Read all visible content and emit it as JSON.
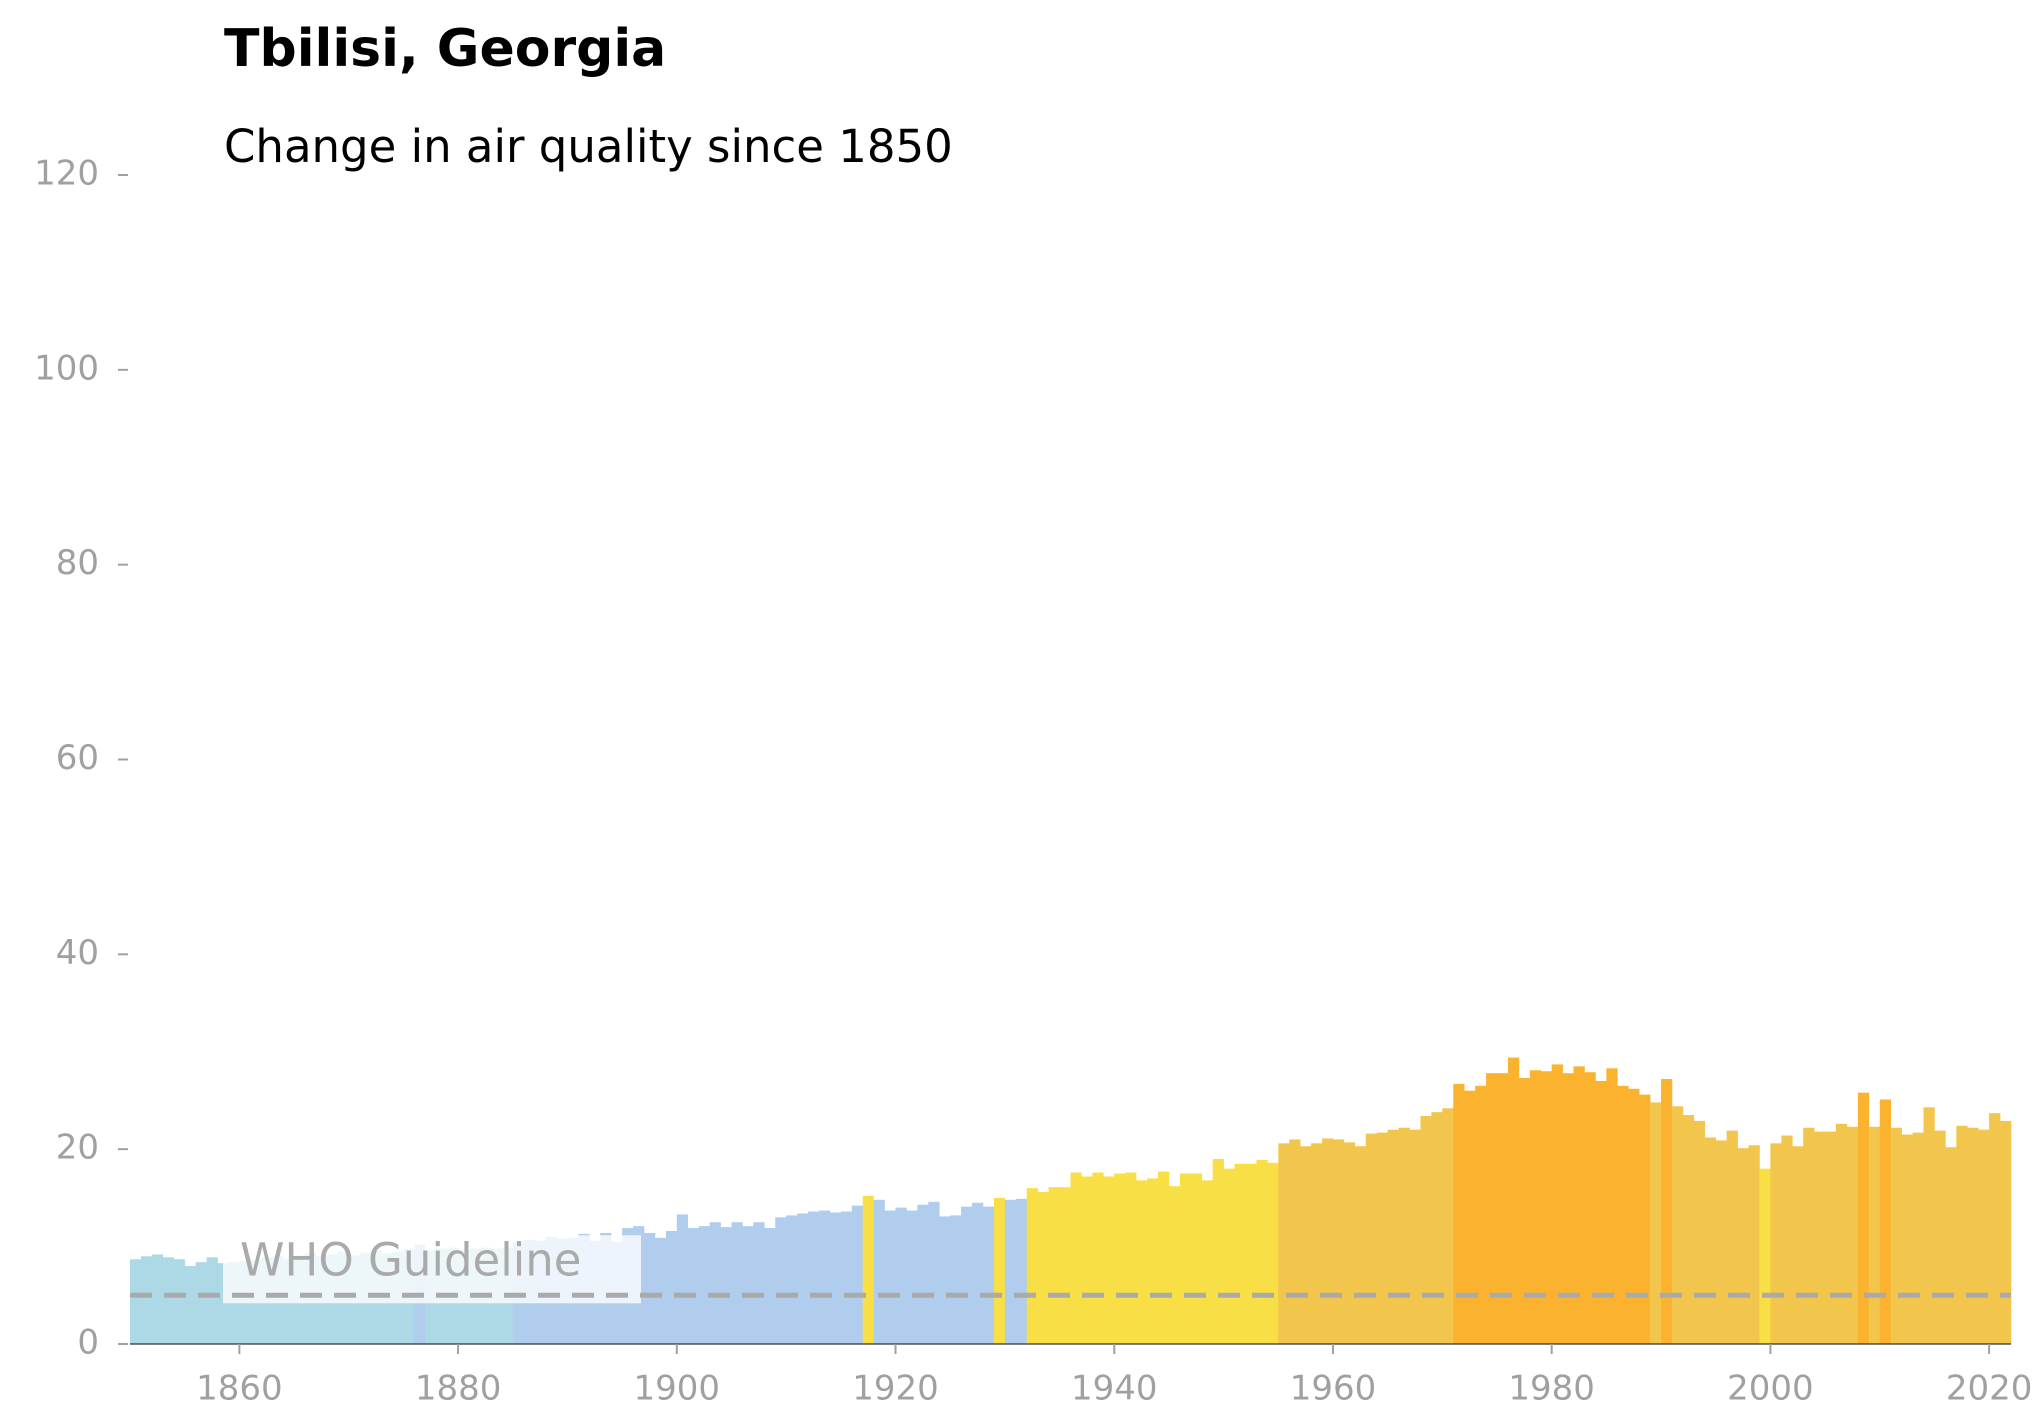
{
  "chart_data": {
    "type": "bar",
    "title": "Tbilisi, Georgia",
    "subtitle": "Change in air quality since 1850",
    "x": [
      1850,
      1851,
      1852,
      1853,
      1854,
      1855,
      1856,
      1857,
      1858,
      1859,
      1860,
      1861,
      1862,
      1863,
      1864,
      1865,
      1866,
      1867,
      1868,
      1869,
      1870,
      1871,
      1872,
      1873,
      1874,
      1875,
      1876,
      1877,
      1878,
      1879,
      1880,
      1881,
      1882,
      1883,
      1884,
      1885,
      1886,
      1887,
      1888,
      1889,
      1890,
      1891,
      1892,
      1893,
      1894,
      1895,
      1896,
      1897,
      1898,
      1899,
      1900,
      1901,
      1902,
      1903,
      1904,
      1905,
      1906,
      1907,
      1908,
      1909,
      1910,
      1911,
      1912,
      1913,
      1914,
      1915,
      1916,
      1917,
      1918,
      1919,
      1920,
      1921,
      1922,
      1923,
      1924,
      1925,
      1926,
      1927,
      1928,
      1929,
      1930,
      1931,
      1932,
      1933,
      1934,
      1935,
      1936,
      1937,
      1938,
      1939,
      1940,
      1941,
      1942,
      1943,
      1944,
      1945,
      1946,
      1947,
      1948,
      1949,
      1950,
      1951,
      1952,
      1953,
      1954,
      1955,
      1956,
      1957,
      1958,
      1959,
      1960,
      1961,
      1962,
      1963,
      1964,
      1965,
      1966,
      1967,
      1968,
      1969,
      1970,
      1971,
      1972,
      1973,
      1974,
      1975,
      1976,
      1977,
      1978,
      1979,
      1980,
      1981,
      1982,
      1983,
      1984,
      1985,
      1986,
      1987,
      1988,
      1989,
      1990,
      1991,
      1992,
      1993,
      1994,
      1995,
      1996,
      1997,
      1998,
      1999,
      2000,
      2001,
      2002,
      2003,
      2004,
      2005,
      2006,
      2007,
      2008,
      2009,
      2010,
      2011,
      2012,
      2013,
      2014,
      2015,
      2016,
      2017,
      2018,
      2019,
      2020,
      2021
    ],
    "values": [
      8.7,
      9.0,
      9.2,
      8.9,
      8.7,
      8.0,
      8.4,
      8.9,
      8.3,
      8.4,
      8.5,
      8.6,
      8.9,
      9.0,
      8.7,
      9.1,
      9.3,
      9.0,
      9.2,
      9.5,
      9.1,
      9.4,
      9.6,
      9.3,
      9.5,
      9.7,
      10.2,
      9.6,
      9.8,
      9.9,
      9.7,
      9.8,
      9.9,
      9.8,
      9.9,
      10.5,
      10.7,
      10.6,
      11.0,
      10.8,
      10.9,
      11.3,
      10.6,
      11.4,
      10.5,
      11.9,
      12.1,
      11.4,
      10.9,
      11.6,
      13.3,
      11.9,
      12.1,
      12.5,
      12.0,
      12.5,
      12.1,
      12.5,
      11.9,
      13.0,
      13.2,
      13.4,
      13.6,
      13.7,
      13.5,
      13.6,
      14.2,
      15.2,
      14.8,
      13.7,
      14.0,
      13.7,
      14.3,
      14.6,
      13.1,
      13.2,
      14.1,
      14.5,
      14.1,
      15.0,
      14.8,
      14.9,
      16.0,
      15.6,
      16.1,
      16.1,
      17.6,
      17.2,
      17.6,
      17.2,
      17.5,
      17.6,
      16.8,
      17.0,
      17.7,
      16.2,
      17.5,
      17.5,
      16.8,
      19.0,
      18.0,
      18.5,
      18.5,
      18.9,
      18.6,
      20.6,
      21.0,
      20.3,
      20.6,
      21.1,
      21.0,
      20.7,
      20.3,
      21.6,
      21.7,
      22.0,
      22.2,
      22.0,
      23.4,
      23.8,
      24.2,
      26.7,
      26.0,
      26.5,
      27.8,
      27.8,
      29.4,
      27.3,
      28.1,
      28.0,
      28.7,
      27.8,
      28.5,
      27.9,
      27.0,
      28.3,
      26.5,
      26.2,
      25.6,
      24.8,
      27.2,
      24.4,
      23.5,
      22.9,
      21.2,
      20.9,
      21.9,
      20.1,
      20.4,
      18.0,
      20.6,
      21.4,
      20.3,
      22.2,
      21.8,
      21.8,
      22.6,
      22.3,
      25.8,
      22.3,
      25.1,
      22.2,
      21.5,
      21.7,
      24.3,
      21.9,
      20.2,
      22.4,
      22.2,
      22.0,
      23.7,
      22.9
    ],
    "colors": [
      "#add8e6",
      "#add8e6",
      "#add8e6",
      "#add8e6",
      "#add8e6",
      "#add8e6",
      "#add8e6",
      "#add8e6",
      "#add8e6",
      "#add8e6",
      "#add8e6",
      "#add8e6",
      "#add8e6",
      "#add8e6",
      "#add8e6",
      "#add8e6",
      "#add8e6",
      "#add8e6",
      "#add8e6",
      "#add8e6",
      "#add8e6",
      "#add8e6",
      "#add8e6",
      "#add8e6",
      "#add8e6",
      "#add8e6",
      "#b0cdee",
      "#add8e6",
      "#add8e6",
      "#add8e6",
      "#add8e6",
      "#add8e6",
      "#add8e6",
      "#add8e6",
      "#add8e6",
      "#b0cdee",
      "#b0cdee",
      "#b0cdee",
      "#b0cdee",
      "#b0cdee",
      "#b0cdee",
      "#b0cdee",
      "#b0cdee",
      "#b0cdee",
      "#b0cdee",
      "#b0cdee",
      "#b0cdee",
      "#b0cdee",
      "#b0cdee",
      "#b0cdee",
      "#b0cdee",
      "#b0cdee",
      "#b0cdee",
      "#b0cdee",
      "#b0cdee",
      "#b0cdee",
      "#b0cdee",
      "#b0cdee",
      "#b0cdee",
      "#b0cdee",
      "#b0cdee",
      "#b0cdee",
      "#b0cdee",
      "#b0cdee",
      "#b0cdee",
      "#b0cdee",
      "#b0cdee",
      "#f8df46",
      "#b0cdee",
      "#b0cdee",
      "#b0cdee",
      "#b0cdee",
      "#b0cdee",
      "#b0cdee",
      "#b0cdee",
      "#b0cdee",
      "#b0cdee",
      "#b0cdee",
      "#b0cdee",
      "#f8df46",
      "#b0cdee",
      "#b0cdee",
      "#f8df46",
      "#f8df46",
      "#f8df46",
      "#f8df46",
      "#f8df46",
      "#f8df46",
      "#f8df46",
      "#f8df46",
      "#f8df46",
      "#f8df46",
      "#f8df46",
      "#f8df46",
      "#f8df46",
      "#f8df46",
      "#f8df46",
      "#f8df46",
      "#f8df46",
      "#f8df46",
      "#f8df46",
      "#f8df46",
      "#f8df46",
      "#f8df46",
      "#f8df46",
      "#f2c64c",
      "#f2c64c",
      "#f2c64c",
      "#f2c64c",
      "#f2c64c",
      "#f2c64c",
      "#f2c64c",
      "#f2c64c",
      "#f2c64c",
      "#f2c64c",
      "#f2c64c",
      "#f2c64c",
      "#f2c64c",
      "#f2c64c",
      "#f2c64c",
      "#f2c64c",
      "#fbb22f",
      "#fbb22f",
      "#fbb22f",
      "#fbb22f",
      "#fbb22f",
      "#fbb22f",
      "#fbb22f",
      "#fbb22f",
      "#fbb22f",
      "#fbb22f",
      "#fbb22f",
      "#fbb22f",
      "#fbb22f",
      "#fbb22f",
      "#fbb22f",
      "#fbb22f",
      "#fbb22f",
      "#fbb22f",
      "#f2c64c",
      "#fbb22f",
      "#f2c64c",
      "#f2c64c",
      "#f2c64c",
      "#f2c64c",
      "#f2c64c",
      "#f2c64c",
      "#f2c64c",
      "#f2c64c",
      "#f8df46",
      "#f2c64c",
      "#f2c64c",
      "#f2c64c",
      "#f2c64c",
      "#f2c64c",
      "#f2c64c",
      "#f2c64c",
      "#f2c64c",
      "#fbb22f",
      "#f2c64c",
      "#fbb22f",
      "#f2c64c",
      "#f2c64c",
      "#f2c64c",
      "#f2c64c",
      "#f2c64c",
      "#f2c64c",
      "#f2c64c",
      "#f2c64c",
      "#f2c64c",
      "#f2c64c",
      "#f2c64c"
    ],
    "xlim": [
      1850,
      2022
    ],
    "xticks": [
      1860,
      1880,
      1900,
      1920,
      1940,
      1960,
      1980,
      2000,
      2020
    ],
    "ylim": [
      0,
      120
    ],
    "yticks": [
      0,
      20,
      40,
      60,
      80,
      100,
      120
    ],
    "guideline": {
      "value": 5,
      "label": "WHO Guideline",
      "color": "#aaaaaa"
    },
    "tick_color": "#a0a0a0"
  }
}
